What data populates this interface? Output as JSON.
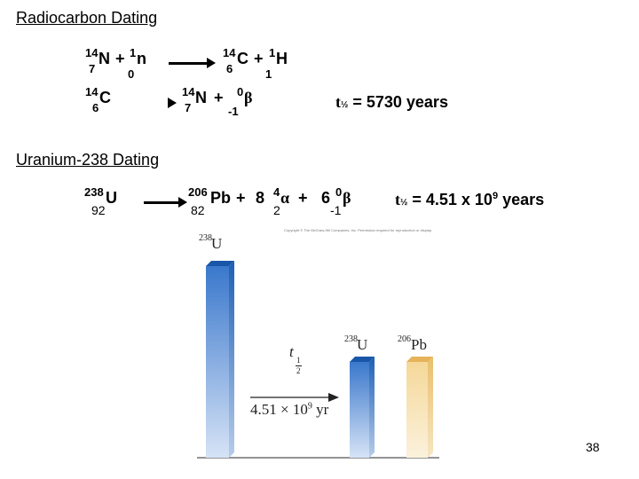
{
  "title": "Radiocarbon Dating",
  "radiocarbon": {
    "eq1": {
      "r_mass": "14",
      "r_symbol": "N",
      "r_z": "7",
      "plus1": "+",
      "n_mass": "1",
      "n_symbol": "n",
      "n_z": "0",
      "p_mass": "14",
      "p_symbol": "C",
      "p_z": "6",
      "plus2": "+",
      "h_mass": "1",
      "h_symbol": "H",
      "h_z": "1"
    },
    "eq2": {
      "r_mass": "14",
      "r_symbol": "C",
      "r_z": "6",
      "p_mass": "14",
      "p_symbol": "N",
      "p_z": "7",
      "plus": "+",
      "b_mass": "0",
      "b_symbol": "β",
      "b_z": "-1"
    },
    "half_life": {
      "t": "t",
      "sub": "½",
      "rest": " = 5730 years"
    }
  },
  "uranium": {
    "heading": "Uranium-238 Dating",
    "eq": {
      "r_mass": "238",
      "r_symbol": "U",
      "r_z": "92",
      "p_mass": "206",
      "p_symbol": "Pb",
      "p_z": "82",
      "plus1": "+",
      "alpha_coef": "8",
      "alpha_mass": "4",
      "alpha_symbol": "α",
      "alpha_z": "2",
      "plus2": "+",
      "beta_coef": "6",
      "beta_mass": "0",
      "beta_symbol": "β",
      "beta_z": "-1"
    },
    "half_life": {
      "t": "t",
      "sub": "½",
      "value": " = 4.51 x 10",
      "exp": "9",
      "unit": " years"
    }
  },
  "figure": {
    "copyright": "Copyright © The McGraw-Hill Companies, Inc. Permission required for reproduction or display.",
    "bar1_mass": "238",
    "bar1_symbol": "U",
    "bar2_mass": "238",
    "bar2_symbol": "U",
    "bar3_mass": "206",
    "bar3_symbol": "Pb",
    "t_half_t": "t",
    "t_half_num": "1",
    "t_half_den": "2",
    "time_label": "4.51 × 10",
    "time_exp": "9",
    "time_unit": " yr",
    "bars": {
      "u_start": 1.0,
      "u_after": 0.5,
      "pb_after": 0.5
    },
    "colors": {
      "uranium": "#3f7fd0",
      "uranium_top": "#1d5fb8",
      "lead": "#f3d28f",
      "lead_top": "#e6b35a"
    }
  },
  "slide_number": "38"
}
